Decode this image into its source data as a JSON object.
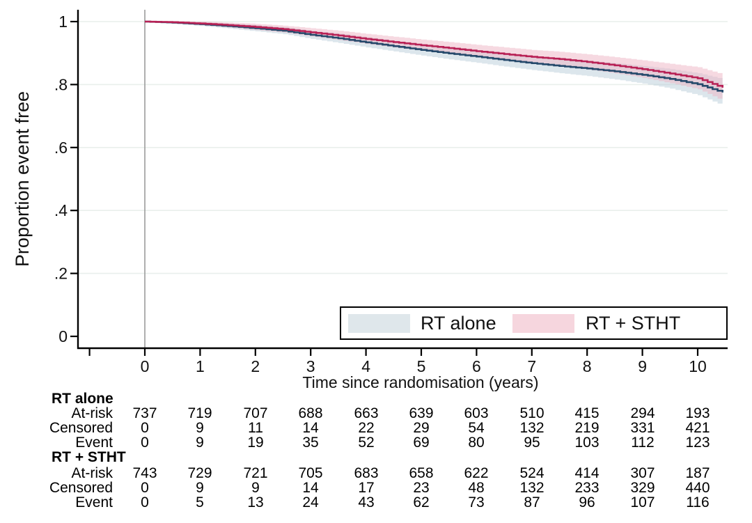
{
  "chart_data": {
    "type": "line",
    "subtype": "kaplan-meier-step",
    "title": "",
    "xlabel": "Time since randomisation (years)",
    "ylabel": "Proportion event free",
    "xlim": [
      -1.2,
      10.55
    ],
    "ylim": [
      0,
      1
    ],
    "xticks": [
      0,
      1,
      2,
      3,
      4,
      5,
      6,
      7,
      8,
      9,
      10
    ],
    "xticks_minor_unlabeled": [
      -1
    ],
    "yticks": [
      0,
      0.2,
      0.4,
      0.6,
      0.8,
      1
    ],
    "ytick_labels": [
      "0",
      ".2",
      ".4",
      ".6",
      ".8",
      "1"
    ],
    "grid": true,
    "gridline_color": "#e9efec",
    "axis_color": "#000000",
    "reference_line_x": 0,
    "reference_line_color": "#9b9b9b",
    "legend_position": "inside-bottom-right",
    "series": [
      {
        "name": "RT alone",
        "line_color": "#25496b",
        "band_color": "#b9cdd9",
        "band_opacity": 0.5,
        "swatch_color": "#dfe7eb",
        "x": [
          0,
          0.5,
          1,
          1.5,
          2,
          2.5,
          3,
          3.5,
          4,
          4.5,
          5,
          5.5,
          6,
          6.5,
          7,
          7.5,
          8,
          8.5,
          9,
          9.5,
          10,
          10.45
        ],
        "y": [
          1.0,
          0.997,
          0.992,
          0.986,
          0.979,
          0.971,
          0.958,
          0.947,
          0.934,
          0.922,
          0.91,
          0.899,
          0.889,
          0.878,
          0.868,
          0.859,
          0.851,
          0.842,
          0.831,
          0.818,
          0.801,
          0.775
        ],
        "ci_halfwidth": [
          0.002,
          0.004,
          0.006,
          0.008,
          0.01,
          0.011,
          0.013,
          0.015,
          0.016,
          0.017,
          0.018,
          0.019,
          0.02,
          0.021,
          0.022,
          0.023,
          0.024,
          0.026,
          0.028,
          0.031,
          0.035,
          0.042
        ]
      },
      {
        "name": "RT + STHT",
        "line_color": "#b82155",
        "band_color": "#eeb3c4",
        "band_opacity": 0.5,
        "swatch_color": "#f6d6de",
        "x": [
          0,
          0.5,
          1,
          1.5,
          2,
          2.5,
          3,
          3.5,
          4,
          4.5,
          5,
          5.5,
          6,
          6.5,
          7,
          7.5,
          8,
          8.5,
          9,
          9.5,
          10,
          10.45
        ],
        "y": [
          1.0,
          0.998,
          0.994,
          0.989,
          0.983,
          0.976,
          0.966,
          0.956,
          0.945,
          0.935,
          0.925,
          0.916,
          0.906,
          0.897,
          0.888,
          0.881,
          0.872,
          0.861,
          0.849,
          0.835,
          0.82,
          0.79
        ],
        "ci_halfwidth": [
          0.002,
          0.004,
          0.006,
          0.008,
          0.01,
          0.011,
          0.013,
          0.015,
          0.016,
          0.017,
          0.018,
          0.019,
          0.02,
          0.021,
          0.022,
          0.023,
          0.024,
          0.026,
          0.028,
          0.031,
          0.035,
          0.042
        ]
      }
    ]
  },
  "legend": {
    "items": [
      {
        "label": "RT alone"
      },
      {
        "label": "RT + STHT"
      }
    ]
  },
  "risk_table": {
    "times": [
      0,
      1,
      2,
      3,
      4,
      5,
      6,
      7,
      8,
      9,
      10
    ],
    "groups": [
      {
        "label": "RT alone",
        "rows": [
          {
            "label": "At-risk",
            "values": [
              737,
              719,
              707,
              688,
              663,
              639,
              603,
              510,
              415,
              294,
              193
            ]
          },
          {
            "label": "Censored",
            "values": [
              0,
              9,
              11,
              14,
              22,
              29,
              54,
              132,
              219,
              331,
              421
            ]
          },
          {
            "label": "Event",
            "values": [
              0,
              9,
              19,
              35,
              52,
              69,
              80,
              95,
              103,
              112,
              123
            ]
          }
        ]
      },
      {
        "label": "RT + STHT",
        "rows": [
          {
            "label": "At-risk",
            "values": [
              743,
              729,
              721,
              705,
              683,
              658,
              622,
              524,
              414,
              307,
              187
            ]
          },
          {
            "label": "Censored",
            "values": [
              0,
              9,
              9,
              14,
              17,
              23,
              48,
              132,
              233,
              329,
              440
            ]
          },
          {
            "label": "Event",
            "values": [
              0,
              5,
              13,
              24,
              43,
              62,
              73,
              87,
              96,
              107,
              116
            ]
          }
        ]
      }
    ]
  }
}
